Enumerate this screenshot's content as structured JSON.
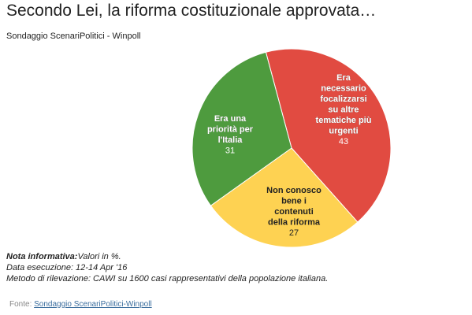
{
  "header": {
    "title": "Secondo Lei, la riforma costituzionale approvata…",
    "subtitle": "Sondaggio ScenariPolitici - Winpoll"
  },
  "chart_data": {
    "type": "pie",
    "title": "Secondo Lei, la riforma costituzionale approvata…",
    "subtitle": "Sondaggio ScenariPolitici - Winpoll",
    "slices": [
      {
        "label": "Era necessario focalizzarsi su altre tematiche più urgenti",
        "label_lines": [
          "Era",
          "necessario",
          "focalizzarsi",
          "su altre",
          "tematiche più",
          "urgenti"
        ],
        "value": 43,
        "color": "#e14b41"
      },
      {
        "label": "Non conosco bene i contenuti della riforma",
        "label_lines": [
          "Non conosco",
          "bene i",
          "contenuti",
          "della riforma"
        ],
        "value": 27,
        "color": "#fed252"
      },
      {
        "label": "Era una priorità per l'Italia",
        "label_lines": [
          "Era una",
          "priorità per",
          "l'Italia"
        ],
        "value": 31,
        "color": "#4e9b3e"
      }
    ]
  },
  "notes": {
    "label": "Nota informativa:",
    "values": "Valori in %.",
    "date": "Data esecuzione: 12-14 Apr '16",
    "method": "Metodo di rilevazione: CAWI su 1600 casi rappresentativi della popolazione italiana."
  },
  "source": {
    "prefix": "Fonte: ",
    "link_text": "Sondaggio ScenariPolitici-Winpoll"
  }
}
